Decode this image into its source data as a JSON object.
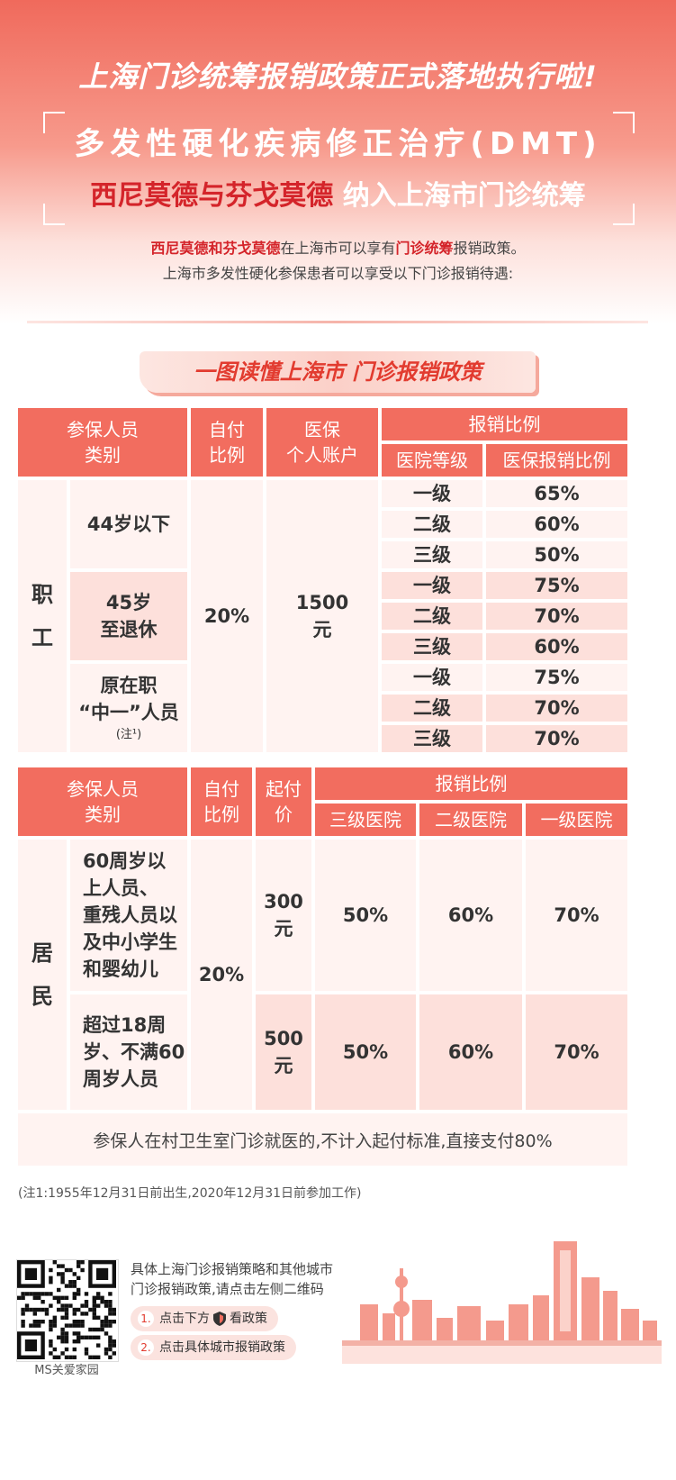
{
  "header": {
    "title": "上海门诊统筹报销政策正式落地执行啦!",
    "subtitle1": "多发性硬化疾病修正治疗(DMT)",
    "subtitle2_drugs": "西尼莫德与芬戈莫德",
    "subtitle2_rest": "纳入上海市门诊统筹"
  },
  "intro": {
    "line1_drugs": "西尼莫德和芬戈莫德",
    "line1_mid": "在上海市可以享有",
    "line1_key": "门诊统筹",
    "line1_end": "报销政策。",
    "line2": "上海市多发性硬化参保患者可以享受以下门诊报销待遇:"
  },
  "banner": "一图读懂上海市 门诊报销政策",
  "employee_table": {
    "headers": {
      "category": "参保人员\n类别",
      "self_pay": "自付\n比例",
      "account": "医保\n个人账户",
      "reimburse": "报销比例",
      "hospital_level": "医院等级",
      "ratio": "医保报销比例"
    },
    "group_label": "职\n工",
    "self_pay_value": "20%",
    "account_value": "1500\n元",
    "groups": [
      {
        "label": "44岁以下",
        "note": "",
        "rows": [
          {
            "level": "一级",
            "ratio": "65%"
          },
          {
            "level": "二级",
            "ratio": "60%"
          },
          {
            "level": "三级",
            "ratio": "50%"
          }
        ]
      },
      {
        "label": "45岁\n至退休",
        "note": "",
        "rows": [
          {
            "level": "一级",
            "ratio": "75%"
          },
          {
            "level": "二级",
            "ratio": "70%"
          },
          {
            "level": "三级",
            "ratio": "60%"
          }
        ]
      },
      {
        "label": "原在职\n“中一”人员",
        "note": "(注¹)",
        "rows": [
          {
            "level": "一级",
            "ratio": "75%"
          },
          {
            "level": "二级",
            "ratio": "70%"
          },
          {
            "level": "三级",
            "ratio": "70%"
          }
        ]
      }
    ]
  },
  "resident_table": {
    "headers": {
      "category": "参保人员\n类别",
      "self_pay": "自付\n比例",
      "deductible": "起付\n价",
      "reimburse": "报销比例",
      "level3": "三级医院",
      "level2": "二级医院",
      "level1": "一级医院"
    },
    "group_label": "居\n民",
    "self_pay_value": "20%",
    "rows": [
      {
        "label": "60周岁以\n上人员、\n重残人员以\n及中小学生\n和婴幼儿",
        "deductible": "300\n元",
        "l3": "50%",
        "l2": "60%",
        "l1": "70%"
      },
      {
        "label": "超过18周\n岁、不满60\n周岁人员",
        "deductible": "500\n元",
        "l3": "50%",
        "l2": "60%",
        "l1": "70%"
      }
    ],
    "footer": "参保人在村卫生室门诊就医的,不计入起付标准,直接支付80%"
  },
  "note": "(注1:1955年12月31日前出生,2020年12月31日前参加工作)",
  "bottom": {
    "qr_label": "MS关爱家园",
    "text1": "具体上海门诊报销策略和其他城市",
    "text2": "门诊报销政策,请点击左侧二维码",
    "step1_num": "1.",
    "step1_a": "点击下方",
    "step1_b": "看政策",
    "step2_num": "2.",
    "step2": "点击具体城市报销政策"
  },
  "colors": {
    "accent": "#f26d5f",
    "red_text": "#d4242a",
    "row_light": "#fff3f1",
    "row_pink": "#fde0db"
  }
}
